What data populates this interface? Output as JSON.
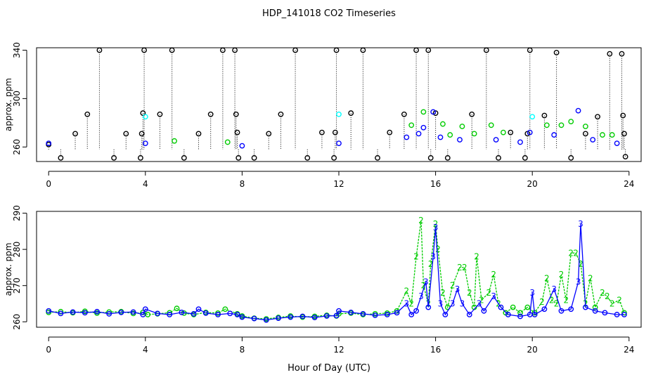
{
  "figure": {
    "title": "HDP_141018  CO2 Timeseries",
    "xlabel": "Hour of Day (UTC)"
  },
  "colors": {
    "black": "#000000",
    "blue": "#0000ff",
    "green": "#00cc00",
    "cyan": "#00ffff"
  },
  "chart_data": [
    {
      "type": "scatter",
      "panel": "top",
      "ylabel": "approx. ppm",
      "xlim": [
        -0.5,
        24.5
      ],
      "ylim": [
        248,
        342
      ],
      "x_ticks": [
        0,
        4,
        8,
        12,
        16,
        20,
        24
      ],
      "y_ticks": [
        260,
        300,
        340
      ],
      "grid": false,
      "notes_symbols": "open circles; black circles with dotted vertical drop lines, blue and green circles, a few cyan circles",
      "series": [
        {
          "color": "black",
          "style": "circle-dropline",
          "points": [
            [
              0.0,
              262
            ],
            [
              0.5,
              251
            ],
            [
              1.1,
              271
            ],
            [
              1.6,
              287
            ],
            [
              2.1,
              340
            ],
            [
              2.7,
              251
            ],
            [
              3.2,
              271
            ],
            [
              3.8,
              251
            ],
            [
              3.85,
              271
            ],
            [
              3.9,
              288
            ],
            [
              3.95,
              340
            ],
            [
              4.6,
              287
            ],
            [
              5.1,
              340
            ],
            [
              5.6,
              251
            ],
            [
              6.2,
              271
            ],
            [
              6.7,
              287
            ],
            [
              7.2,
              340
            ],
            [
              7.7,
              340
            ],
            [
              7.75,
              287
            ],
            [
              7.8,
              272
            ],
            [
              7.85,
              251
            ],
            [
              8.5,
              251
            ],
            [
              9.1,
              271
            ],
            [
              9.6,
              287
            ],
            [
              10.2,
              340
            ],
            [
              10.7,
              251
            ],
            [
              11.3,
              272
            ],
            [
              11.8,
              251
            ],
            [
              11.85,
              272
            ],
            [
              11.9,
              340
            ],
            [
              12.5,
              288
            ],
            [
              13.0,
              340
            ],
            [
              13.6,
              251
            ],
            [
              14.1,
              272
            ],
            [
              14.7,
              287
            ],
            [
              15.2,
              340
            ],
            [
              15.7,
              340
            ],
            [
              15.8,
              251
            ],
            [
              16.0,
              288
            ],
            [
              16.5,
              251
            ],
            [
              17.5,
              287
            ],
            [
              18.1,
              340
            ],
            [
              18.6,
              251
            ],
            [
              19.1,
              272
            ],
            [
              19.7,
              251
            ],
            [
              19.8,
              271
            ],
            [
              19.9,
              340
            ],
            [
              20.5,
              286
            ],
            [
              21.0,
              338
            ],
            [
              21.6,
              251
            ],
            [
              22.2,
              271
            ],
            [
              22.7,
              285
            ],
            [
              23.2,
              337
            ],
            [
              23.7,
              337
            ],
            [
              23.75,
              286
            ],
            [
              23.8,
              271
            ],
            [
              23.85,
              252
            ]
          ]
        },
        {
          "color": "blue",
          "style": "circle",
          "points": [
            [
              0.0,
              263
            ],
            [
              4.0,
              263
            ],
            [
              8.0,
              261
            ],
            [
              12.0,
              263
            ],
            [
              14.8,
              268
            ],
            [
              15.3,
              271
            ],
            [
              15.5,
              276
            ],
            [
              15.9,
              289
            ],
            [
              16.2,
              268
            ],
            [
              17.0,
              266
            ],
            [
              18.5,
              266
            ],
            [
              19.5,
              264
            ],
            [
              19.9,
              272
            ],
            [
              20.9,
              270
            ],
            [
              21.9,
              290
            ],
            [
              22.5,
              266
            ],
            [
              23.5,
              263
            ]
          ]
        },
        {
          "color": "green",
          "style": "circle",
          "points": [
            [
              5.2,
              265
            ],
            [
              7.4,
              264
            ],
            [
              15.0,
              278
            ],
            [
              15.5,
              289
            ],
            [
              16.3,
              279
            ],
            [
              16.6,
              270
            ],
            [
              17.1,
              277
            ],
            [
              17.6,
              271
            ],
            [
              18.3,
              278
            ],
            [
              18.8,
              272
            ],
            [
              20.6,
              278
            ],
            [
              21.2,
              278
            ],
            [
              21.6,
              281
            ],
            [
              22.2,
              277
            ],
            [
              22.9,
              270
            ],
            [
              23.3,
              270
            ]
          ]
        },
        {
          "color": "cyan",
          "style": "circle",
          "points": [
            [
              4.0,
              285
            ],
            [
              12.0,
              287
            ],
            [
              20.0,
              285
            ]
          ]
        }
      ]
    },
    {
      "type": "line",
      "panel": "bottom",
      "ylabel": "approx. ppm",
      "xlim": [
        -0.5,
        24.5
      ],
      "ylim": [
        258.5,
        290.5
      ],
      "x_ticks": [
        0,
        4,
        8,
        12,
        16,
        20,
        24
      ],
      "y_ticks": [
        260,
        270,
        280,
        290
      ],
      "grid": false,
      "series": [
        {
          "color": "blue",
          "marker": "3",
          "points": [
            [
              0.0,
              263.0
            ],
            [
              0.5,
              262.3
            ],
            [
              1.0,
              262.7
            ],
            [
              1.5,
              262.5
            ],
            [
              2.0,
              262.8
            ],
            [
              2.5,
              262.2
            ],
            [
              3.0,
              262.6
            ],
            [
              3.5,
              262.7
            ],
            [
              3.9,
              262.0
            ],
            [
              4.0,
              263.5
            ],
            [
              4.5,
              262.3
            ],
            [
              5.0,
              262.0
            ],
            [
              5.5,
              262.6
            ],
            [
              6.0,
              262.2
            ],
            [
              6.2,
              263.5
            ],
            [
              6.5,
              262.4
            ],
            [
              7.0,
              262.0
            ],
            [
              7.5,
              262.3
            ],
            [
              7.8,
              262.0
            ],
            [
              8.0,
              261.3
            ],
            [
              8.5,
              260.9
            ],
            [
              9.0,
              260.5
            ],
            [
              9.5,
              261.0
            ],
            [
              10.0,
              261.3
            ],
            [
              10.5,
              261.5
            ],
            [
              11.0,
              261.2
            ],
            [
              11.5,
              261.6
            ],
            [
              11.9,
              261.7
            ],
            [
              12.0,
              263.0
            ],
            [
              12.5,
              262.6
            ],
            [
              13.0,
              262.2
            ],
            [
              13.5,
              261.8
            ],
            [
              14.0,
              262.0
            ],
            [
              14.4,
              262.5
            ],
            [
              14.8,
              265.0
            ],
            [
              15.0,
              262.0
            ],
            [
              15.2,
              263.0
            ],
            [
              15.4,
              267.0
            ],
            [
              15.6,
              271.0
            ],
            [
              15.7,
              264.0
            ],
            [
              15.9,
              278.0
            ],
            [
              16.0,
              286.0
            ],
            [
              16.2,
              265.0
            ],
            [
              16.4,
              262.0
            ],
            [
              16.7,
              265.0
            ],
            [
              16.9,
              269.0
            ],
            [
              17.1,
              265.0
            ],
            [
              17.4,
              262.0
            ],
            [
              17.8,
              265.0
            ],
            [
              18.0,
              263.0
            ],
            [
              18.4,
              267.0
            ],
            [
              18.7,
              264.0
            ],
            [
              19.0,
              262.0
            ],
            [
              19.5,
              261.5
            ],
            [
              19.9,
              262.0
            ],
            [
              20.0,
              268.0
            ],
            [
              20.1,
              262.0
            ],
            [
              20.5,
              263.5
            ],
            [
              20.9,
              269.0
            ],
            [
              21.2,
              263.0
            ],
            [
              21.6,
              263.5
            ],
            [
              21.9,
              271.0
            ],
            [
              22.0,
              287.0
            ],
            [
              22.2,
              264.0
            ],
            [
              22.6,
              263.0
            ],
            [
              23.0,
              262.5
            ],
            [
              23.5,
              262.0
            ],
            [
              23.8,
              262.0
            ]
          ]
        },
        {
          "color": "green",
          "marker": "2",
          "points": [
            [
              0.0,
              262.6
            ],
            [
              0.5,
              262.8
            ],
            [
              1.0,
              262.5
            ],
            [
              1.5,
              262.9
            ],
            [
              2.0,
              262.4
            ],
            [
              2.5,
              262.7
            ],
            [
              3.0,
              262.8
            ],
            [
              3.5,
              262.3
            ],
            [
              3.9,
              262.6
            ],
            [
              4.1,
              262.0
            ],
            [
              4.5,
              262.2
            ],
            [
              5.0,
              262.5
            ],
            [
              5.3,
              263.7
            ],
            [
              5.6,
              262.4
            ],
            [
              6.0,
              262.0
            ],
            [
              6.5,
              262.6
            ],
            [
              7.0,
              262.4
            ],
            [
              7.3,
              263.5
            ],
            [
              7.8,
              262.2
            ],
            [
              8.0,
              261.6
            ],
            [
              8.5,
              261.0
            ],
            [
              9.0,
              260.8
            ],
            [
              9.5,
              261.2
            ],
            [
              10.0,
              261.6
            ],
            [
              10.5,
              261.3
            ],
            [
              11.0,
              261.5
            ],
            [
              11.5,
              261.8
            ],
            [
              11.9,
              261.6
            ],
            [
              12.0,
              262.2
            ],
            [
              12.5,
              262.4
            ],
            [
              13.0,
              262.0
            ],
            [
              13.5,
              262.2
            ],
            [
              14.0,
              262.4
            ],
            [
              14.4,
              263.0
            ],
            [
              14.8,
              268.5
            ],
            [
              15.0,
              265.0
            ],
            [
              15.2,
              278.0
            ],
            [
              15.4,
              288.0
            ],
            [
              15.5,
              270.0
            ],
            [
              15.7,
              265.0
            ],
            [
              15.8,
              276.0
            ],
            [
              16.0,
              287.0
            ],
            [
              16.1,
              280.0
            ],
            [
              16.3,
              268.0
            ],
            [
              16.5,
              264.0
            ],
            [
              16.7,
              270.0
            ],
            [
              17.0,
              275.0
            ],
            [
              17.2,
              275.0
            ],
            [
              17.4,
              268.0
            ],
            [
              17.6,
              264.0
            ],
            [
              17.7,
              278.0
            ],
            [
              17.9,
              266.0
            ],
            [
              18.2,
              268.0
            ],
            [
              18.4,
              273.0
            ],
            [
              18.6,
              265.0
            ],
            [
              18.9,
              262.5
            ],
            [
              19.2,
              264.0
            ],
            [
              19.5,
              262.5
            ],
            [
              19.8,
              264.0
            ],
            [
              20.1,
              262.5
            ],
            [
              20.4,
              265.5
            ],
            [
              20.6,
              272.0
            ],
            [
              20.8,
              266.0
            ],
            [
              21.0,
              265.0
            ],
            [
              21.2,
              273.0
            ],
            [
              21.4,
              266.0
            ],
            [
              21.6,
              279.0
            ],
            [
              21.8,
              279.0
            ],
            [
              22.0,
              276.0
            ],
            [
              22.2,
              265.0
            ],
            [
              22.4,
              272.0
            ],
            [
              22.6,
              264.0
            ],
            [
              22.9,
              268.0
            ],
            [
              23.1,
              267.0
            ],
            [
              23.3,
              265.0
            ],
            [
              23.6,
              266.0
            ],
            [
              23.8,
              262.5
            ]
          ]
        }
      ]
    }
  ]
}
